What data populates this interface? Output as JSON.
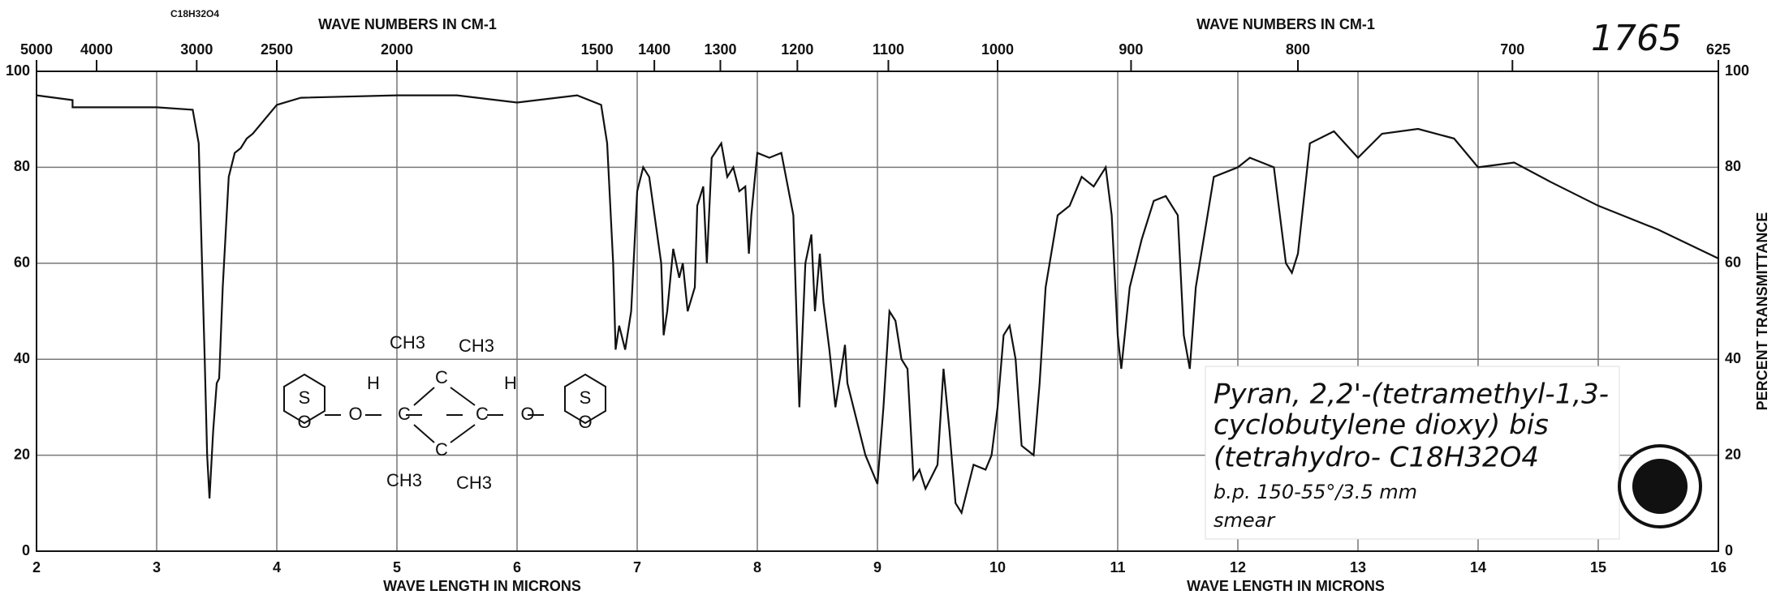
{
  "chart_data": {
    "type": "line",
    "title": "1765",
    "formula": "C18H32O4",
    "x_label_top": [
      "WAVE NUMBERS IN CM-1",
      "WAVE NUMBERS IN CM-1"
    ],
    "x_label": [
      "WAVE LENGTH IN MICRONS",
      "WAVE LENGTH IN MICRONS"
    ],
    "y_label": "PERCENT TRANSMITTANCE",
    "annotation": [
      "Pyran, 2,2'-(tetramethyl-1,3-",
      "cyclobutylene dioxy) bis",
      "(tetrahydro- C18H32O4",
      "b.p. 150-55°/3.5 mm",
      "smear"
    ],
    "structure": [
      "CH3",
      "CH3",
      "H",
      "H",
      "O",
      "C",
      "C",
      "C",
      "C",
      "O",
      "CH3",
      "CH3",
      "S",
      "S",
      "O",
      "O"
    ],
    "xlim": [
      2,
      16
    ],
    "xticks": [
      2,
      3,
      4,
      5,
      6,
      7,
      8,
      9,
      10,
      11,
      12,
      13,
      14,
      15,
      16
    ],
    "x2lim": [
      5000,
      625
    ],
    "x2ticks": [
      5000,
      4000,
      3000,
      2500,
      2000,
      1500,
      1400,
      1300,
      1200,
      1100,
      1000,
      900,
      800,
      700,
      625
    ],
    "ylim": [
      0,
      100
    ],
    "yticks": [
      0,
      20,
      40,
      60,
      80,
      100
    ],
    "grid": true,
    "x": [
      2.0,
      2.3,
      2.3,
      3.0,
      3.3,
      3.35,
      3.4,
      3.42,
      3.44,
      3.47,
      3.5,
      3.52,
      3.55,
      3.6,
      3.65,
      3.7,
      3.75,
      3.8,
      3.9,
      4.0,
      4.2,
      5.0,
      5.5,
      6.0,
      6.5,
      6.7,
      6.75,
      6.8,
      6.82,
      6.85,
      6.9,
      6.95,
      7.0,
      7.05,
      7.1,
      7.2,
      7.22,
      7.25,
      7.3,
      7.35,
      7.38,
      7.42,
      7.48,
      7.5,
      7.55,
      7.58,
      7.62,
      7.7,
      7.75,
      7.8,
      7.85,
      7.9,
      7.93,
      7.95,
      8.0,
      8.1,
      8.2,
      8.3,
      8.35,
      8.4,
      8.45,
      8.48,
      8.52,
      8.55,
      8.6,
      8.65,
      8.7,
      8.73,
      8.75,
      8.8,
      8.9,
      9.0,
      9.05,
      9.1,
      9.15,
      9.2,
      9.25,
      9.3,
      9.35,
      9.4,
      9.5,
      9.55,
      9.6,
      9.65,
      9.7,
      9.8,
      9.9,
      9.95,
      10.0,
      10.05,
      10.1,
      10.15,
      10.2,
      10.3,
      10.35,
      10.4,
      10.5,
      10.6,
      10.7,
      10.8,
      10.9,
      10.95,
      11.0,
      11.03,
      11.1,
      11.2,
      11.3,
      11.4,
      11.5,
      11.55,
      11.6,
      11.65,
      11.8,
      12.0,
      12.1,
      12.3,
      12.4,
      12.45,
      12.5,
      12.6,
      12.8,
      13.0,
      13.2,
      13.5,
      13.8,
      14.0,
      14.3,
      14.6,
      15.0,
      15.2,
      15.5,
      16.0
    ],
    "series": [
      {
        "name": "spectrum",
        "color": "#111111",
        "values": [
          95,
          94,
          92.5,
          92.5,
          92,
          85,
          40,
          20,
          11,
          25,
          35,
          36,
          55,
          78,
          83,
          84,
          86,
          87,
          90,
          93,
          94.5,
          95,
          95,
          93.5,
          95,
          93,
          85,
          60,
          42,
          47,
          42,
          50,
          75,
          80,
          78,
          60,
          45,
          50,
          63,
          57,
          60,
          50,
          55,
          72,
          76,
          60,
          82,
          85,
          78,
          80,
          75,
          76,
          62,
          70,
          83,
          82,
          83,
          70,
          30,
          60,
          66,
          50,
          62,
          52,
          42,
          30,
          38,
          43,
          35,
          30,
          20,
          14,
          30,
          50,
          48,
          40,
          38,
          15,
          17,
          13,
          18,
          38,
          25,
          10,
          8,
          18,
          17,
          20,
          30,
          45,
          47,
          40,
          22,
          20,
          35,
          55,
          70,
          72,
          78,
          76,
          80,
          70,
          45,
          38,
          55,
          65,
          73,
          74,
          70,
          45,
          38,
          55,
          78,
          80,
          82,
          80,
          60,
          58,
          62,
          85,
          87.5,
          82,
          87,
          88,
          86,
          80,
          81,
          77,
          72,
          70,
          67,
          61
        ]
      }
    ]
  }
}
